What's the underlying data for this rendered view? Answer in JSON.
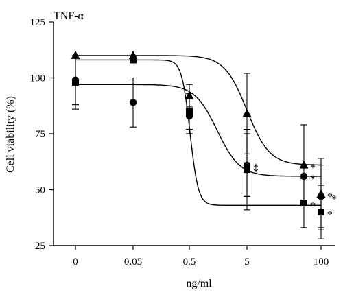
{
  "chart_data": {
    "type": "scatter",
    "title": "TNF-α",
    "xlabel": "ng/ml",
    "ylabel": "Cell viability (%)",
    "x_scale": "log",
    "x_ticks": [
      0,
      0.05,
      0.5,
      5,
      100
    ],
    "x_tick_labels": [
      "0",
      "0.05",
      "0.5",
      "5",
      "100"
    ],
    "ylim": [
      25,
      125
    ],
    "y_ticks": [
      25,
      50,
      75,
      100,
      125
    ],
    "y_tick_labels": [
      "25",
      "50",
      "75",
      "100",
      "125"
    ],
    "grid": false,
    "significance_marker": "*",
    "series": [
      {
        "marker": "triangle",
        "x": [
          "0",
          "0.05",
          "0.5",
          "5",
          "100"
        ],
        "y": [
          110,
          110,
          92,
          84,
          48
        ],
        "err": [
          0,
          0,
          5,
          18,
          16
        ],
        "significant": [
          false,
          false,
          false,
          false,
          true
        ],
        "fit": {
          "top": 110,
          "bottom": 61,
          "midpoint": 5
        }
      },
      {
        "marker": "square",
        "x": [
          "0",
          "0.05",
          "0.5",
          "5",
          "100"
        ],
        "y": [
          98,
          108,
          85,
          59,
          40
        ],
        "err": [
          12,
          0,
          8,
          18,
          12
        ],
        "significant": [
          false,
          false,
          false,
          true,
          true
        ],
        "fit": {
          "top": 108,
          "bottom": 43,
          "midpoint": 0.5
        }
      },
      {
        "marker": "circle",
        "x": [
          "0",
          "0.05",
          "0.5",
          "5",
          "100"
        ],
        "y": [
          99,
          89,
          83,
          61,
          47
        ],
        "err": [
          11,
          11,
          8,
          14,
          14
        ],
        "significant": [
          false,
          false,
          false,
          true,
          true
        ],
        "fit": {
          "top": 97,
          "bottom": 56,
          "midpoint": 1.5
        }
      }
    ],
    "extra_points": [
      {
        "marker": "triangle",
        "x_label": "between 5 and 100",
        "y": 61,
        "err": 18,
        "significant": true
      },
      {
        "marker": "circle",
        "x_label": "between 5 and 100",
        "y": 56,
        "err": 0,
        "significant": true
      },
      {
        "marker": "square",
        "x_label": "between 5 and 100",
        "y": 44,
        "err": 11,
        "significant": true
      }
    ]
  }
}
